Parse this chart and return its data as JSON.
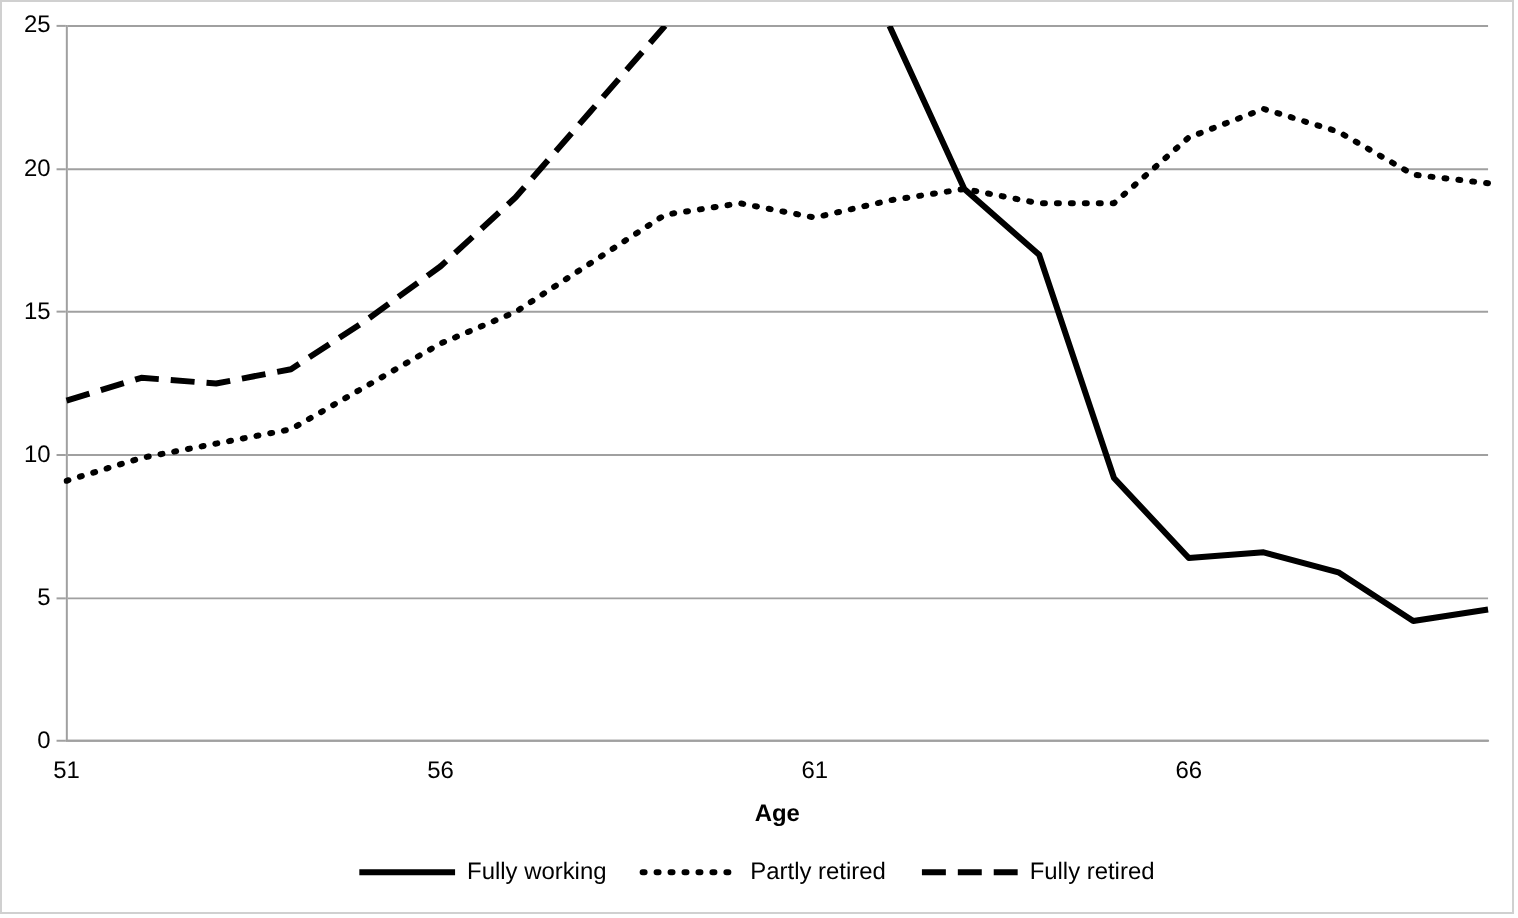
{
  "chart_data": {
    "type": "line",
    "xlabel": "Age",
    "categories": [
      "51",
      null,
      null,
      null,
      null,
      "56",
      null,
      null,
      null,
      null,
      "61",
      null,
      null,
      null,
      null,
      "66",
      null,
      null,
      null,
      null
    ],
    "series": [
      {
        "name": "Fully working",
        "color": "#000000",
        "line_style": "solid",
        "values": [
          null,
          null,
          null,
          null,
          null,
          null,
          null,
          null,
          null,
          null,
          null,
          25,
          19.3,
          17.0,
          9.2,
          6.4,
          6.6,
          5.9,
          4.2,
          4.6
        ]
      },
      {
        "name": "Partly retired",
        "color": "#000000",
        "line_style": "dotted",
        "values": [
          9.1,
          9.9,
          10.4,
          10.9,
          12.4,
          13.9,
          15.0,
          16.7,
          18.4,
          18.8,
          18.3,
          18.9,
          19.3,
          18.8,
          18.8,
          21.1,
          22.1,
          21.3,
          19.8,
          19.5
        ]
      },
      {
        "name": "Fully retired",
        "color": "#000000",
        "line_style": "dashed",
        "values": [
          11.9,
          12.7,
          12.5,
          13.0,
          14.7,
          16.6,
          19.0,
          22.0,
          25,
          null,
          null,
          null,
          null,
          null,
          null,
          null,
          null,
          null,
          null,
          null
        ]
      }
    ],
    "ylim": [
      0,
      25
    ],
    "yticks": [
      0,
      5,
      10,
      15,
      20,
      25
    ],
    "grid": "y",
    "legend": "bottom",
    "marker": "none"
  }
}
